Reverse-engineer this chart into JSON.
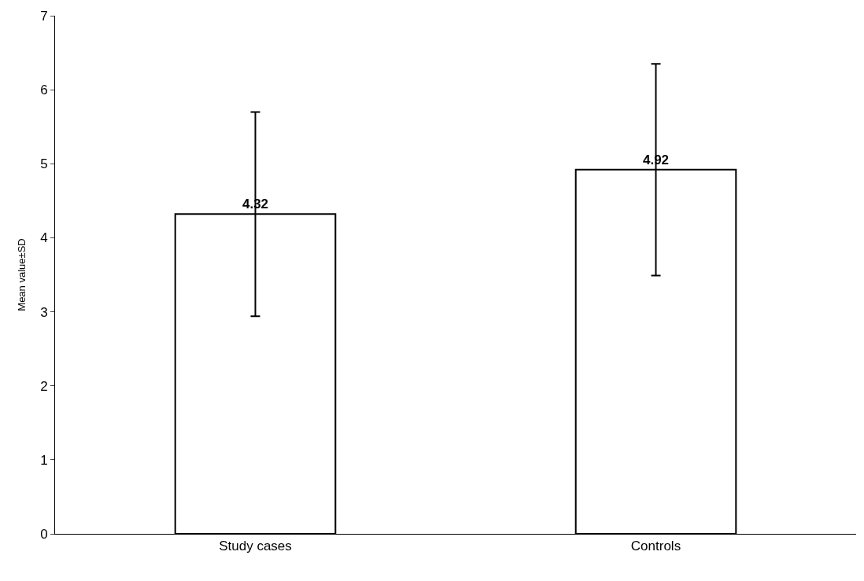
{
  "chart_data": {
    "type": "bar",
    "ylabel": "Mean value±SD",
    "categories": [
      "Study cases",
      "Controls"
    ],
    "values": [
      4.32,
      4.92
    ],
    "errors": [
      1.38,
      1.43
    ],
    "color": "#ffffff",
    "data_labels": true,
    "ylim": [
      0,
      7
    ],
    "yticks": [
      0,
      1,
      2,
      3,
      4,
      5,
      6,
      7
    ]
  }
}
